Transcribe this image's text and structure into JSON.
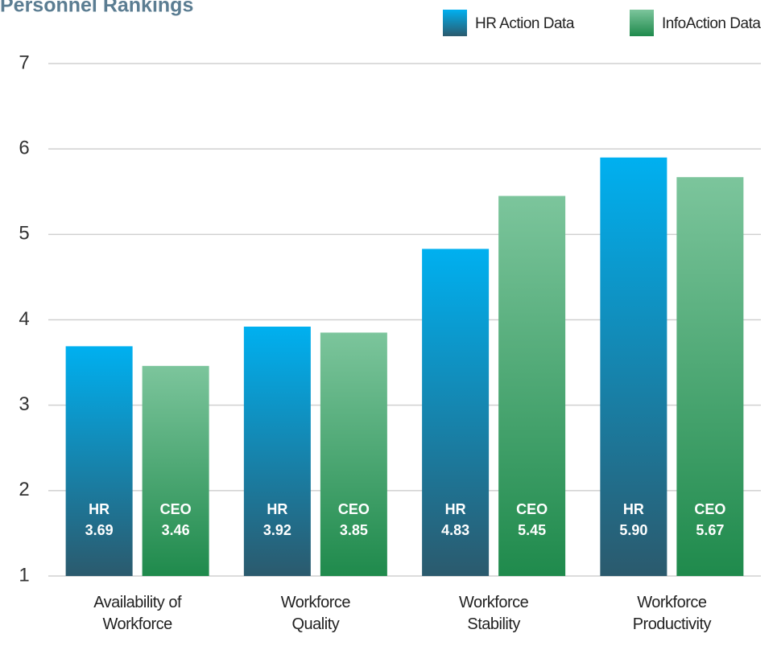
{
  "chart_data": {
    "type": "bar",
    "title": "Personnel Rankings",
    "categories": [
      "Availability of\nWorkforce",
      "Workforce\nQuality",
      "Workforce\nStability",
      "Workforce\nProductivity"
    ],
    "series": [
      {
        "name": "HR Action Data",
        "bar_label": "HR",
        "color": "#00b0f0",
        "color_bottom": "#2b5a6d",
        "values": [
          3.69,
          3.92,
          4.83,
          5.9
        ],
        "value_labels": [
          "3.69",
          "3.92",
          "4.83",
          "5.90"
        ]
      },
      {
        "name": "InfoAction Data",
        "bar_label": "CEO",
        "color": "#7cc59c",
        "color_bottom": "#1f8a4c",
        "values": [
          3.46,
          3.85,
          5.45,
          5.67
        ],
        "value_labels": [
          "3.46",
          "3.85",
          "5.45",
          "5.67"
        ]
      }
    ],
    "ylim": [
      1,
      7
    ],
    "yticks": [
      1,
      2,
      3,
      4,
      5,
      6,
      7
    ],
    "grid": true,
    "legend": "top-right"
  }
}
